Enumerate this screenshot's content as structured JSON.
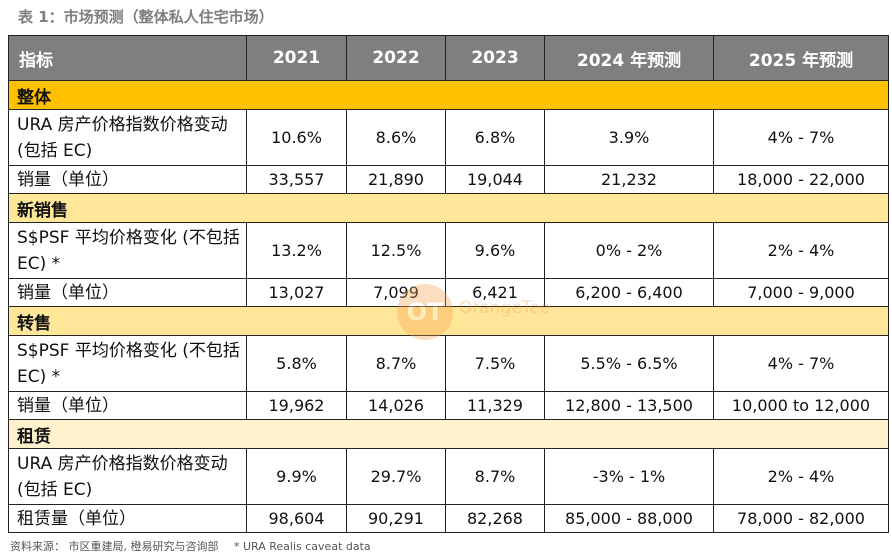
{
  "title": "表 1：市场预测（整体私人住宅市场）",
  "colors": {
    "header_bg": "#7f7f7f",
    "section_strong": "#ffc000",
    "section_light": "#ffe699",
    "section_pale": "#fff2cc"
  },
  "columns": [
    "指标",
    "2021",
    "2022",
    "2023",
    "2024 年预测",
    "2025 年预测"
  ],
  "sections": [
    {
      "title": "整体",
      "rows": [
        {
          "label": "URA 房产价格指数价格变动 (包括 EC)",
          "values": [
            "10.6%",
            "8.6%",
            "6.8%",
            "3.9%",
            "4% - 7%"
          ]
        },
        {
          "label": "销量（单位）",
          "values": [
            "33,557",
            "21,890",
            "19,044",
            "21,232",
            "18,000 - 22,000"
          ]
        }
      ]
    },
    {
      "title": "新销售",
      "rows": [
        {
          "label": "S$PSF 平均价格变化 (不包括 EC) *",
          "values": [
            "13.2%",
            "12.5%",
            "9.6%",
            "0% - 2%",
            "2% - 4%"
          ]
        },
        {
          "label": "销量（单位）",
          "values": [
            "13,027",
            "7,099",
            "6,421",
            "6,200 - 6,400",
            "7,000 - 9,000"
          ]
        }
      ]
    },
    {
      "title": "转售",
      "rows": [
        {
          "label": "S$PSF 平均价格变化 (不包括 EC) *",
          "values": [
            "5.8%",
            "8.7%",
            "7.5%",
            "5.5% - 6.5%",
            "4% - 7%"
          ]
        },
        {
          "label": "销量（单位）",
          "values": [
            "19,962",
            "14,026",
            "11,329",
            "12,800 - 13,500",
            "10,000 to 12,000"
          ]
        }
      ]
    },
    {
      "title": "租赁",
      "rows": [
        {
          "label": "URA 房产价格指数价格变动 (包括 EC)",
          "values": [
            "9.9%",
            "29.7%",
            "8.7%",
            "-3% - 1%",
            "2% - 4%"
          ]
        },
        {
          "label": "租赁量（单位）",
          "values": [
            "98,604",
            "90,291",
            "82,268",
            "85,000 - 88,000",
            "78,000 - 82,000"
          ]
        }
      ]
    }
  ],
  "watermark": {
    "mark": "OT",
    "brand": "OrangeTee"
  },
  "footer": {
    "source": "资料来源： 市区重建局, 橙易研究与咨询部",
    "note": "* URA Realis caveat data"
  }
}
